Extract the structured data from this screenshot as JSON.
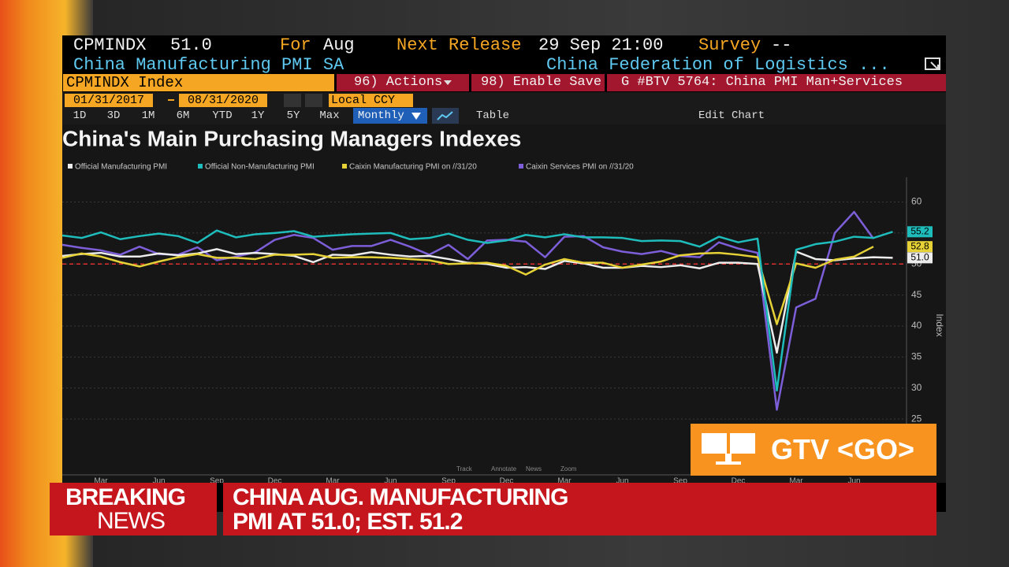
{
  "header": {
    "ticker": "CPMINDX",
    "value": "51.0",
    "for_label": "For",
    "for_value": "Aug",
    "next_label": "Next Release",
    "next_value": "29 Sep 21:00",
    "survey_label": "Survey",
    "survey_value": "--",
    "name": "China Manufacturing PMI SA",
    "source": "China Federation of Logistics ..."
  },
  "toolbar": {
    "security": "CPMINDX Index",
    "actions": "96) Actions",
    "save": "98) Enable Save",
    "page": "G #BTV 5764: China PMI Man+Services",
    "start_date": "01/31/2017",
    "end_date": "08/31/2020",
    "currency": "Local CCY",
    "periods": [
      "1D",
      "3D",
      "1M",
      "6M",
      "YTD",
      "1Y",
      "5Y",
      "Max"
    ],
    "frequency": "Monthly",
    "table": "Table",
    "edit": "Edit Chart"
  },
  "chart_data": {
    "type": "line",
    "title": "China's Main Purchasing Managers Indexes",
    "y_axis_label": "Index",
    "categories": [
      null,
      null,
      "Mar",
      null,
      null,
      "Jun",
      null,
      null,
      "Sep",
      null,
      null,
      "Dec",
      null,
      null,
      "Mar",
      null,
      null,
      "Jun",
      null,
      null,
      "Sep",
      null,
      null,
      "Dec",
      null,
      null,
      "Mar",
      null,
      null,
      "Jun",
      null,
      null,
      "Sep",
      null,
      null,
      "Dec",
      null,
      null,
      "Mar",
      null,
      null,
      "Jun",
      null,
      null
    ],
    "series": [
      {
        "name": "Official Manufacturing PMI",
        "color": "#ececec",
        "values": [
          51.3,
          51.6,
          51.8,
          51.2,
          51.2,
          51.7,
          51.4,
          51.7,
          52.4,
          51.6,
          51.8,
          51.6,
          51.3,
          50.3,
          51.5,
          51.4,
          51.9,
          51.5,
          51.2,
          51.3,
          50.8,
          50.2,
          50.0,
          49.4,
          49.5,
          49.2,
          50.5,
          50.1,
          49.4,
          49.4,
          49.7,
          49.5,
          49.8,
          49.3,
          50.2,
          50.2,
          50.0,
          35.7,
          52.0,
          50.8,
          50.6,
          50.9,
          51.1,
          51.0
        ],
        "value_labels": [
          null,
          null,
          null,
          null,
          null,
          null,
          null,
          null,
          null,
          null,
          null,
          null,
          null,
          null,
          null,
          null,
          null,
          null,
          null,
          null,
          null,
          null,
          null,
          null,
          null,
          null,
          null,
          null,
          null,
          null,
          null,
          null,
          null,
          null,
          null,
          null,
          null,
          null,
          null,
          null,
          null,
          null,
          null,
          "51.0"
        ]
      },
      {
        "name": "Official Non-Manufacturing PMI",
        "color": "#1fbcbc",
        "values": [
          54.6,
          54.2,
          55.1,
          54.0,
          54.5,
          54.9,
          54.5,
          53.4,
          55.4,
          54.3,
          54.8,
          55.0,
          55.3,
          54.4,
          54.6,
          54.8,
          54.9,
          55.0,
          54.0,
          54.2,
          54.9,
          53.9,
          53.4,
          53.8,
          54.7,
          54.3,
          54.8,
          54.3,
          54.3,
          54.2,
          53.7,
          53.8,
          53.7,
          52.8,
          54.4,
          53.5,
          54.1,
          29.6,
          52.3,
          53.2,
          53.6,
          54.4,
          54.2,
          55.2
        ]
      },
      {
        "name": "Caixin Manufacturing PMI on //31/20",
        "color": "#e6d237",
        "values": [
          51.0,
          51.7,
          51.2,
          50.3,
          49.6,
          50.4,
          51.1,
          51.6,
          51.0,
          51.0,
          50.8,
          51.5,
          51.5,
          51.6,
          51.0,
          51.1,
          51.1,
          51.0,
          50.8,
          50.6,
          50.0,
          50.1,
          50.2,
          49.7,
          48.3,
          49.9,
          50.8,
          50.2,
          50.2,
          49.4,
          49.9,
          50.4,
          51.4,
          51.7,
          51.8,
          51.5,
          51.1,
          40.3,
          50.1,
          49.4,
          50.7,
          51.2,
          52.8,
          null
        ]
      },
      {
        "name": "Caixin Services PMI on //31/20",
        "color": "#7c5ed8",
        "values": [
          53.1,
          52.6,
          52.2,
          51.5,
          52.8,
          51.6,
          51.5,
          52.7,
          50.6,
          51.2,
          51.9,
          53.9,
          54.7,
          54.2,
          52.3,
          52.9,
          52.9,
          53.9,
          52.8,
          51.5,
          53.1,
          50.8,
          53.8,
          53.9,
          53.6,
          51.1,
          54.4,
          54.5,
          52.7,
          52.0,
          51.6,
          52.1,
          51.3,
          51.1,
          53.5,
          52.5,
          51.8,
          26.5,
          43.0,
          44.4,
          55.0,
          58.4,
          54.1,
          null
        ]
      }
    ],
    "ylim": [
      16,
      64
    ],
    "yticks": [
      25,
      30,
      35,
      40,
      45,
      50,
      55,
      60
    ],
    "grid": true,
    "reference_line": 50,
    "reference_color": "#e03030",
    "controls": [
      "Track",
      "Annotate",
      "News",
      "Zoom"
    ]
  },
  "overlay": {
    "gtv": "GTV <GO>"
  },
  "banner": {
    "tag_line1": "BREAKING",
    "tag_line2": "NEWS",
    "headline_line1": "CHINA AUG. MANUFACTURING",
    "headline_line2": "PMI AT 51.0; EST. 51.2"
  }
}
